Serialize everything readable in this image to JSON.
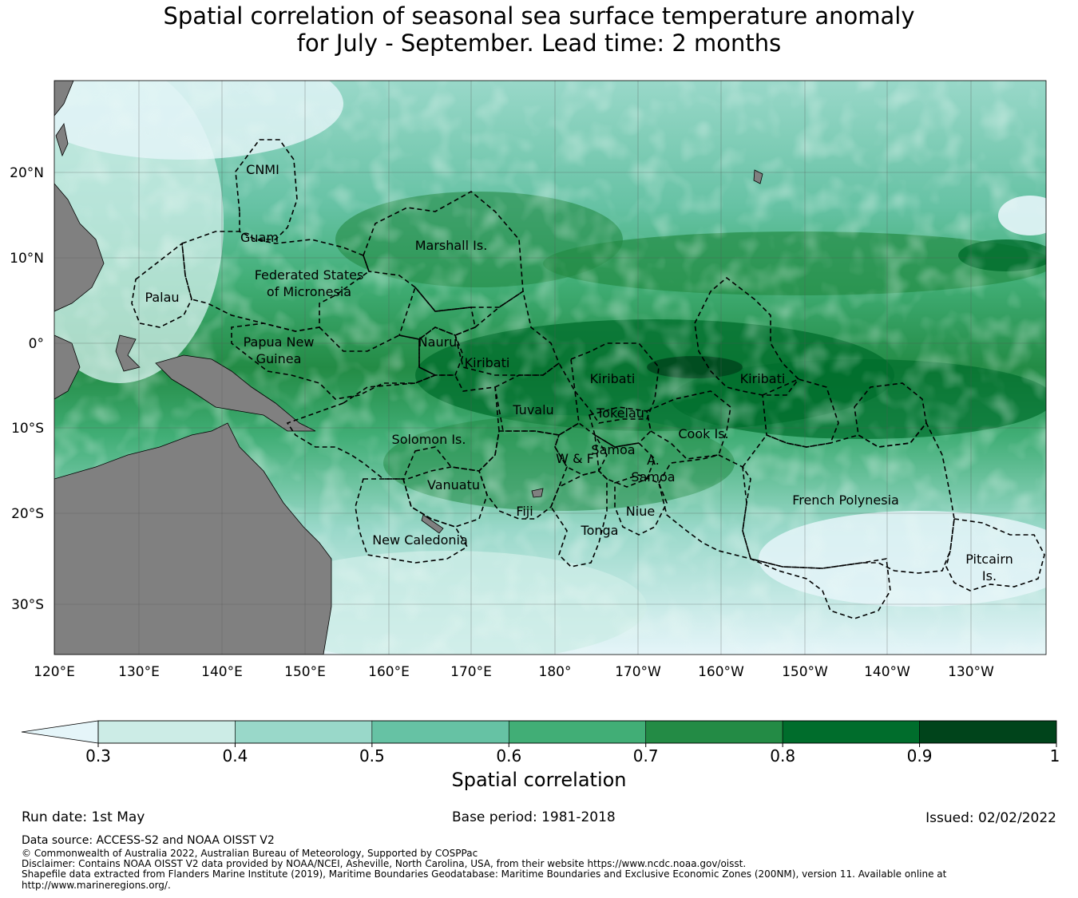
{
  "title": {
    "line1": "Spatial correlation of seasonal sea surface temperature anomaly",
    "line2": "for July - September. Lead time: 2 months"
  },
  "map": {
    "lat_ticks": [
      "20°N",
      "10°N",
      "0°",
      "10°S",
      "20°S",
      "30°S"
    ],
    "lon_ticks": [
      "120°E",
      "130°E",
      "140°E",
      "150°E",
      "160°E",
      "170°E",
      "180°",
      "170°W",
      "160°W",
      "150°W",
      "140°W",
      "130°W"
    ],
    "regions": [
      {
        "label": "CNMI"
      },
      {
        "label": "Guam"
      },
      {
        "label": "Marshall Is."
      },
      {
        "label": "Federated States"
      },
      {
        "label": "of Micronesia"
      },
      {
        "label": "Palau"
      },
      {
        "label": "Papua New"
      },
      {
        "label": "Guinea"
      },
      {
        "label": "Nauru"
      },
      {
        "label": "Kiribati"
      },
      {
        "label": "Kiribati"
      },
      {
        "label": "Kiribati"
      },
      {
        "label": "Tuvalu"
      },
      {
        "label": "Tokelau"
      },
      {
        "label": "Cook Is."
      },
      {
        "label": "Solomon Is."
      },
      {
        "label": "Samoa"
      },
      {
        "label": "W & F"
      },
      {
        "label": "A."
      },
      {
        "label": "Samoa"
      },
      {
        "label": "Vanuatu"
      },
      {
        "label": "Fiji"
      },
      {
        "label": "Niue"
      },
      {
        "label": "Tonga"
      },
      {
        "label": "French Polynesia"
      },
      {
        "label": "New Caledonia"
      },
      {
        "label": "Pitcairn"
      },
      {
        "label": "Is."
      }
    ],
    "colors": {
      "land": "#808080",
      "ocean_low": "#e5f5f9",
      "border": "#000000"
    }
  },
  "colorbar": {
    "title": "Spatial correlation",
    "ticks": [
      "0.3",
      "0.4",
      "0.5",
      "0.6",
      "0.7",
      "0.8",
      "0.9",
      "1"
    ],
    "extend_color": "#e5f5f9",
    "colors": [
      "#ccece6",
      "#99d8c9",
      "#66c2a4",
      "#41ae76",
      "#238b45",
      "#006d2c",
      "#00441b"
    ]
  },
  "footer": {
    "run_date": "Run date: 1st May",
    "base_period": "Base period: 1981-2018",
    "issued": "Issued: 02/02/2022",
    "data_source": "Data source: ACCESS-S2 and NOAA OISST V2",
    "copyright": "© Commonwealth of Australia 2022, Australian Bureau of Meteorology, Supported by COSPPac",
    "disclaimer": "Disclaimer: Contains NOAA OISST V2 data provided by NOAA/NCEI, Asheville, North Carolina, USA, from their website https://www.ncdc.noaa.gov/oisst.",
    "shapefile_1": "Shapefile data extracted from Flanders Marine Institute (2019), Maritime Boundaries Geodatabase: Maritime Boundaries and Exclusive Economic Zones (200NM), version 11. Available online at",
    "shapefile_2": "http://www.marineregions.org/."
  }
}
